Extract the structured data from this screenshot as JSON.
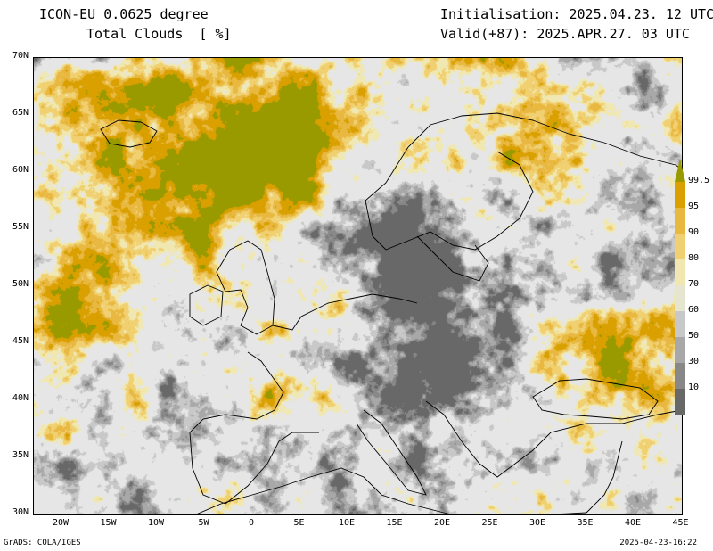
{
  "header": {
    "model": "ICON-EU 0.0625 degree",
    "variable": "Total Clouds  [ %]",
    "init": "Initialisation: 2025.04.23. 12 UTC",
    "valid": "Valid(+87): 2025.APR.27. 03 UTC"
  },
  "axes": {
    "lat_labels": [
      "70N",
      "65N",
      "60N",
      "55N",
      "50N",
      "45N",
      "40N",
      "35N",
      "30N"
    ],
    "lon_labels": [
      "20W",
      "15W",
      "10W",
      "5W",
      "0",
      "5E",
      "10E",
      "15E",
      "20E",
      "25E",
      "30E",
      "35E",
      "40E",
      "45E"
    ]
  },
  "colorbar": {
    "labels": [
      "99.5",
      "95",
      "90",
      "80",
      "70",
      "60",
      "50",
      "30",
      "10"
    ],
    "colors": [
      "#999900",
      "#d9a000",
      "#e8b840",
      "#f0d070",
      "#f0e8b0",
      "#e6e6d0",
      "#c8c8c8",
      "#a8a8a8",
      "#888888",
      "#686868"
    ]
  },
  "footer": {
    "left": "GrADS: COLA/IGES",
    "right": "2025-04-23-16:22"
  }
}
